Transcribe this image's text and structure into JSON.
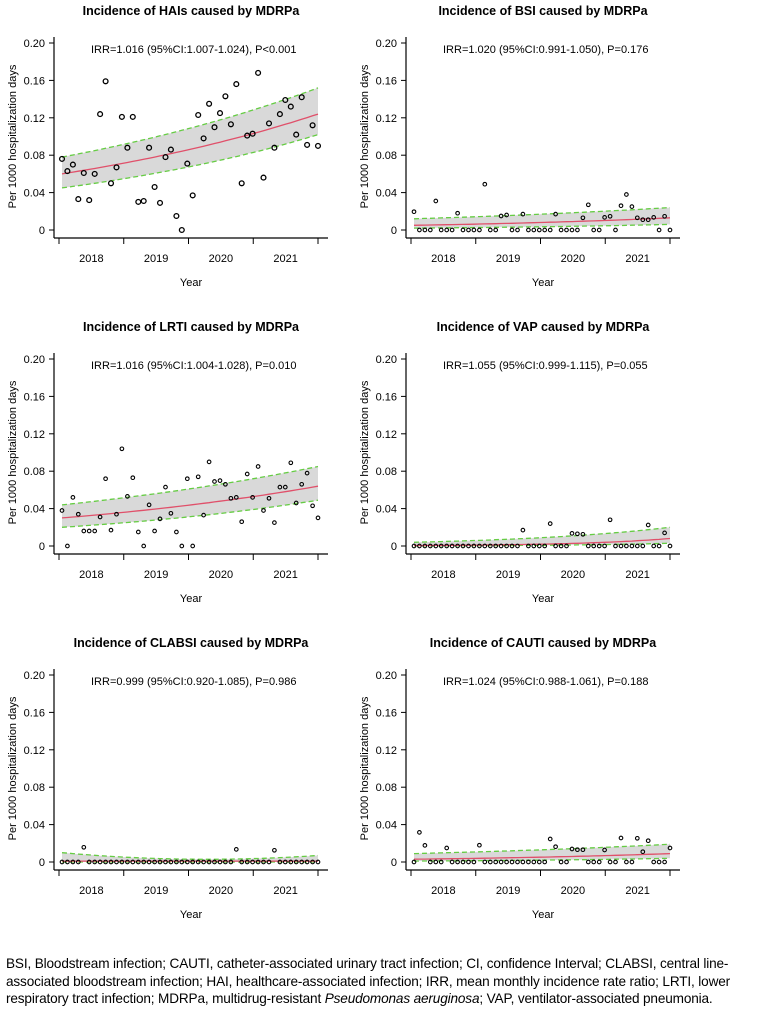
{
  "chart_data": [
    {
      "type": "scatter",
      "title": "Incidence of HAIs caused by MDRPa",
      "annotation": "IRR=1.016 (95%CI:1.007-1.024), P<0.001",
      "xlabel": "Year",
      "ylabel": "Per 1000 hospitalization days",
      "ylim": [
        0,
        0.2
      ],
      "yticks": [
        "0",
        "0.04",
        "0.08",
        "0.12",
        "0.16",
        "0.20"
      ],
      "xticks": [
        "2018",
        "2019",
        "2020",
        "2021"
      ],
      "n_months": 48,
      "values": [
        0.076,
        0.063,
        0.07,
        0.033,
        0.061,
        0.032,
        0.06,
        0.124,
        0.159,
        0.05,
        0.067,
        0.121,
        0.088,
        0.121,
        0.03,
        0.031,
        0.088,
        0.046,
        0.029,
        0.078,
        0.086,
        0.015,
        0.0,
        0.071,
        0.037,
        0.123,
        0.098,
        0.135,
        0.11,
        0.125,
        0.143,
        0.113,
        0.156,
        0.05,
        0.101,
        0.103,
        0.168,
        0.056,
        0.114,
        0.088,
        0.124,
        0.139,
        0.132,
        0.102,
        0.142,
        0.091,
        0.112,
        0.09
      ],
      "fit": {
        "start": 0.06,
        "end": 0.124
      },
      "ci_lower": {
        "start": 0.045,
        "end": 0.102
      },
      "ci_upper": {
        "start": 0.078,
        "end": 0.152
      }
    },
    {
      "type": "scatter",
      "title": "Incidence of BSI caused by MDRPa",
      "annotation": "IRR=1.020 (95%CI:0.991-1.050), P=0.176",
      "xlabel": "Year",
      "ylabel": "Per 1000 hospitalization days",
      "ylim": [
        0,
        0.2
      ],
      "yticks": [
        "0",
        "0.04",
        "0.08",
        "0.12",
        "0.16",
        "0.20"
      ],
      "xticks": [
        "2018",
        "2019",
        "2020",
        "2021"
      ],
      "n_months": 48,
      "values": [
        0.0196,
        0,
        0,
        0,
        0.031,
        0,
        0,
        0,
        0.018,
        0,
        0,
        0,
        0,
        0.049,
        0,
        0,
        0.015,
        0.016,
        0,
        0,
        0.017,
        0,
        0,
        0,
        0,
        0,
        0.017,
        0,
        0,
        0,
        0,
        0.013,
        0.027,
        0,
        0,
        0.0135,
        0.0146,
        0,
        0.026,
        0.038,
        0.025,
        0.013,
        0.011,
        0.011,
        0.0135,
        0,
        0.0146,
        0
      ],
      "fit": {
        "start": 0.005,
        "end": 0.013
      },
      "ci_lower": {
        "start": 0.002,
        "end": 0.006
      },
      "ci_upper": {
        "start": 0.012,
        "end": 0.024
      }
    },
    {
      "type": "scatter",
      "title": "Incidence of LRTI caused by MDRPa",
      "annotation": "IRR=1.016 (95%CI:1.004-1.028), P=0.010",
      "xlabel": "Year",
      "ylabel": "Per 1000 hospitalization days",
      "ylim": [
        0,
        0.2
      ],
      "yticks": [
        "0",
        "0.04",
        "0.08",
        "0.12",
        "0.16",
        "0.20"
      ],
      "xticks": [
        "2018",
        "2019",
        "2020",
        "2021"
      ],
      "n_months": 48,
      "values": [
        0.038,
        0,
        0.052,
        0.034,
        0.016,
        0.016,
        0.016,
        0.031,
        0.072,
        0.017,
        0.034,
        0.104,
        0.053,
        0.073,
        0.015,
        0,
        0.044,
        0.016,
        0.029,
        0.063,
        0.035,
        0.015,
        0,
        0.072,
        0,
        0.074,
        0.033,
        0.09,
        0.069,
        0.07,
        0.066,
        0.051,
        0.052,
        0.026,
        0.077,
        0.052,
        0.085,
        0.038,
        0.051,
        0.025,
        0.063,
        0.063,
        0.089,
        0.046,
        0.066,
        0.078,
        0.043,
        0.03
      ],
      "fit": {
        "start": 0.03,
        "end": 0.064
      },
      "ci_lower": {
        "start": 0.02,
        "end": 0.049
      },
      "ci_upper": {
        "start": 0.044,
        "end": 0.085
      }
    },
    {
      "type": "scatter",
      "title": "Incidence of VAP caused by MDRPa",
      "annotation": "IRR=1.055 (95%CI:0.999-1.115), P=0.055",
      "xlabel": "Year",
      "ylabel": "Per 1000 hospitalization days",
      "ylim": [
        0,
        0.2
      ],
      "yticks": [
        "0",
        "0.04",
        "0.08",
        "0.12",
        "0.16",
        "0.20"
      ],
      "xticks": [
        "2018",
        "2019",
        "2020",
        "2021"
      ],
      "n_months": 48,
      "values": [
        0,
        0,
        0,
        0,
        0,
        0,
        0,
        0,
        0,
        0,
        0,
        0,
        0,
        0,
        0,
        0,
        0,
        0,
        0,
        0,
        0.017,
        0,
        0,
        0,
        0,
        0.024,
        0,
        0,
        0,
        0.0135,
        0.013,
        0.0125,
        0,
        0,
        0,
        0,
        0.028,
        0,
        0,
        0,
        0,
        0,
        0,
        0.0225,
        0,
        0,
        0.014,
        0
      ],
      "fit": {
        "start": 0.0005,
        "end": 0.008
      },
      "ci_lower": {
        "start": 0.0002,
        "end": 0.003
      },
      "ci_upper": {
        "start": 0.004,
        "end": 0.02
      }
    },
    {
      "type": "scatter",
      "title": "Incidence of CLABSI caused by MDRPa",
      "annotation": "IRR=0.999 (95%CI:0.920-1.085), P=0.986",
      "xlabel": "Year",
      "ylabel": "Per 1000 hospitalization days",
      "ylim": [
        0,
        0.2
      ],
      "yticks": [
        "0",
        "0.04",
        "0.08",
        "0.12",
        "0.16",
        "0.20"
      ],
      "xticks": [
        "2018",
        "2019",
        "2020",
        "2021"
      ],
      "n_months": 48,
      "values": [
        0,
        0,
        0,
        0,
        0.0157,
        0,
        0,
        0,
        0,
        0,
        0,
        0,
        0,
        0,
        0,
        0,
        0,
        0,
        0,
        0,
        0,
        0,
        0,
        0,
        0,
        0,
        0,
        0,
        0,
        0,
        0,
        0,
        0.0135,
        0,
        0,
        0,
        0,
        0,
        0,
        0.0125,
        0,
        0,
        0,
        0,
        0,
        0,
        0,
        0
      ],
      "fit": {
        "start": 0.001,
        "end": 0.001
      },
      "ci_lower": {
        "start": 0.0,
        "end": 0.0
      },
      "ci_upper": {
        "start": 0.01,
        "mid": 0.003,
        "end": 0.007
      }
    },
    {
      "type": "scatter",
      "title": "Incidence of CAUTI caused by MDRPa",
      "annotation": "IRR=1.024 (95%CI:0.988-1.061), P=0.188",
      "xlabel": "Year",
      "ylabel": "Per 1000 hospitalization days",
      "ylim": [
        0,
        0.2
      ],
      "yticks": [
        "0",
        "0.04",
        "0.08",
        "0.12",
        "0.16",
        "0.20"
      ],
      "xticks": [
        "2018",
        "2019",
        "2020",
        "2021"
      ],
      "n_months": 48,
      "values": [
        0,
        0.0317,
        0.0178,
        0,
        0,
        0,
        0.015,
        0,
        0,
        0,
        0,
        0,
        0.018,
        0,
        0,
        0,
        0,
        0,
        0,
        0,
        0,
        0,
        0,
        0,
        0,
        0.0246,
        0.0164,
        0,
        0,
        0.0139,
        0.0132,
        0.0132,
        0,
        0,
        0,
        0.0128,
        0,
        0,
        0.0257,
        0,
        0,
        0.0253,
        0.011,
        0.0228,
        0,
        0,
        0,
        0.015
      ],
      "fit": {
        "start": 0.003,
        "end": 0.009
      },
      "ci_lower": {
        "start": 0.001,
        "end": 0.004
      },
      "ci_upper": {
        "start": 0.009,
        "end": 0.019
      }
    }
  ],
  "colors": {
    "fit_line": "#e0506a",
    "ci_line": "#66cc44",
    "ci_band": "#d9d9d9",
    "points": "#000000"
  },
  "caption": {
    "part1": "BSI, Bloodstream infection; CAUTI, catheter-associated urinary tract infection; CI, confidence Interval; CLABSI, central line-associated bloodstream infection; HAI, healthcare-associated infection; IRR, mean monthly incidence rate ratio; LRTI, lower respiratory tract infection; MDRPa, multidrug-resistant ",
    "italic": "Pseudomonas aeruginosa",
    "part2": "; VAP, ventilator-associated pneumonia."
  }
}
